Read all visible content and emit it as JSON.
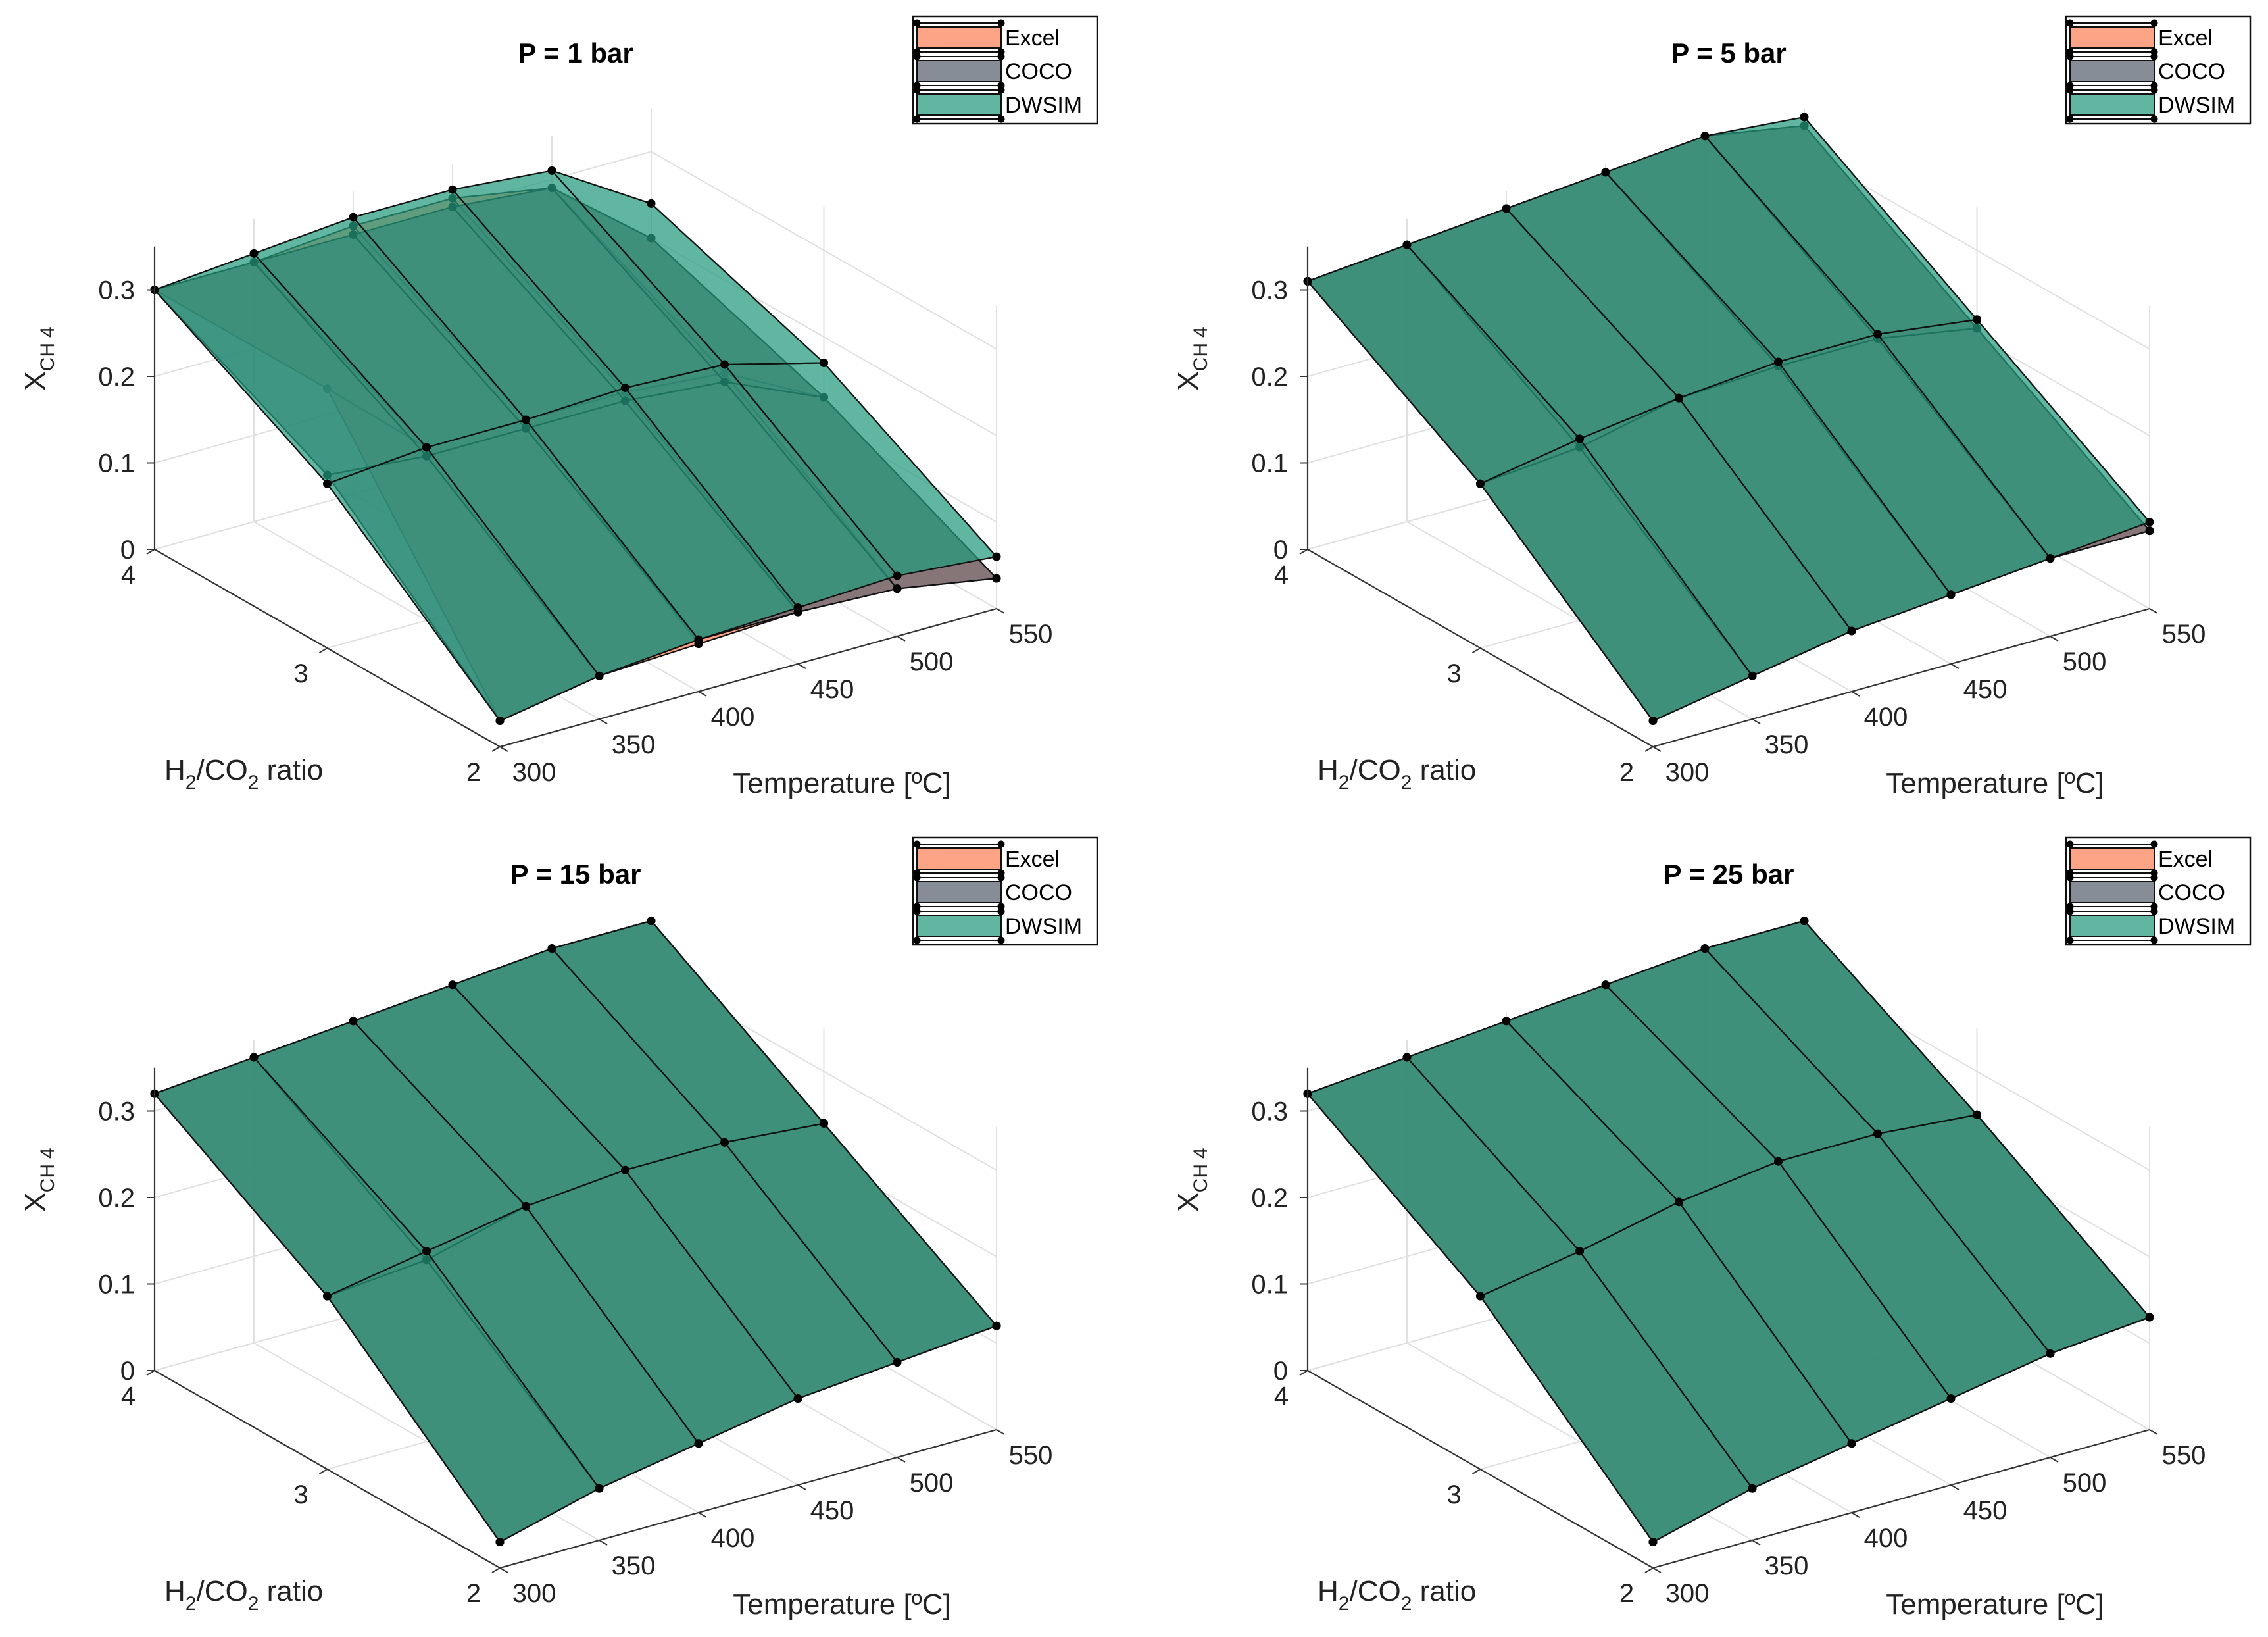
{
  "colors": {
    "excel": "#fb9470",
    "coco": "#5f6773",
    "dwsim": "#239a7c",
    "grid": "#e0e0e0",
    "axis": "#333333",
    "background": "#ffffff"
  },
  "chart_data": [
    {
      "type": "surface",
      "title": "P = 1 bar",
      "xlabel": "Temperature [ºC]",
      "ylabel_parts": [
        "H",
        "2",
        "/CO",
        "2",
        " ratio"
      ],
      "zlabel_parts": [
        "X",
        "CH",
        "4"
      ],
      "x_ticks": [
        "300",
        "350",
        "400",
        "450",
        "500",
        "550"
      ],
      "y_ticks": [
        "2",
        "3",
        "4"
      ],
      "z_ticks": [
        "0",
        "0.1",
        "0.2",
        "0.3"
      ],
      "legend": [
        "Excel",
        "COCO",
        "DWSIM"
      ],
      "temperature": [
        300,
        350,
        400,
        450,
        500,
        550
      ],
      "h2_co2_ratio": [
        2,
        3,
        4
      ],
      "xlim": [
        300,
        550
      ],
      "ylim": [
        2,
        4
      ],
      "zlim": [
        0,
        0.35
      ],
      "series": [
        {
          "name": "Excel",
          "values": [
            [
              0.03,
              0.05,
              0.055,
              0.06,
              0.055,
              0.035
            ],
            [
              0.3,
              0.2,
              0.2,
              0.2,
              0.19,
              0.13
            ],
            [
              0.3,
              0.3,
              0.31,
              0.31,
              0.29,
              0.2
            ]
          ]
        },
        {
          "name": "COCO",
          "values": [
            [
              0.03,
              0.05,
              0.06,
              0.06,
              0.055,
              0.035
            ],
            [
              0.2,
              0.19,
              0.19,
              0.19,
              0.18,
              0.13
            ],
            [
              0.3,
              0.3,
              0.3,
              0.3,
              0.29,
              0.2
            ]
          ]
        },
        {
          "name": "DWSIM",
          "values": [
            [
              0.03,
              0.05,
              0.06,
              0.065,
              0.07,
              0.06
            ],
            [
              0.19,
              0.2,
              0.2,
              0.205,
              0.2,
              0.17
            ],
            [
              0.3,
              0.31,
              0.32,
              0.32,
              0.31,
              0.24
            ]
          ]
        }
      ]
    },
    {
      "type": "surface",
      "title": "P = 5 bar",
      "xlabel": "Temperature [ºC]",
      "ylabel_parts": [
        "H",
        "2",
        "/CO",
        "2",
        " ratio"
      ],
      "zlabel_parts": [
        "X",
        "CH",
        "4"
      ],
      "x_ticks": [
        "300",
        "350",
        "400",
        "450",
        "500",
        "550"
      ],
      "y_ticks": [
        "2",
        "3",
        "4"
      ],
      "z_ticks": [
        "0",
        "0.1",
        "0.2",
        "0.3"
      ],
      "legend": [
        "Excel",
        "COCO",
        "DWSIM"
      ],
      "temperature": [
        300,
        350,
        400,
        450,
        500,
        550
      ],
      "h2_co2_ratio": [
        2,
        3,
        4
      ],
      "xlim": [
        300,
        550
      ],
      "ylim": [
        2,
        4
      ],
      "zlim": [
        0,
        0.35
      ],
      "series": [
        {
          "name": "Excel",
          "values": [
            [
              0.03,
              0.05,
              0.07,
              0.08,
              0.09,
              0.09
            ],
            [
              0.19,
              0.2,
              0.225,
              0.23,
              0.23,
              0.21
            ],
            [
              0.31,
              0.32,
              0.33,
              0.34,
              0.35,
              0.33
            ]
          ]
        },
        {
          "name": "COCO",
          "values": [
            [
              0.03,
              0.05,
              0.07,
              0.08,
              0.09,
              0.09
            ],
            [
              0.19,
              0.2,
              0.225,
              0.23,
              0.23,
              0.21
            ],
            [
              0.31,
              0.32,
              0.33,
              0.34,
              0.35,
              0.33
            ]
          ]
        },
        {
          "name": "DWSIM",
          "values": [
            [
              0.03,
              0.05,
              0.07,
              0.08,
              0.09,
              0.1
            ],
            [
              0.19,
              0.21,
              0.225,
              0.235,
              0.235,
              0.22
            ],
            [
              0.31,
              0.32,
              0.33,
              0.34,
              0.35,
              0.34
            ]
          ]
        }
      ]
    },
    {
      "type": "surface",
      "title": "P = 15 bar",
      "xlabel": "Temperature [ºC]",
      "ylabel_parts": [
        "H",
        "2",
        "/CO",
        "2",
        " ratio"
      ],
      "zlabel_parts": [
        "X",
        "CH",
        "4"
      ],
      "x_ticks": [
        "300",
        "350",
        "400",
        "450",
        "500",
        "550"
      ],
      "y_ticks": [
        "2",
        "3",
        "4"
      ],
      "z_ticks": [
        "0",
        "0.1",
        "0.2",
        "0.3"
      ],
      "legend": [
        "Excel",
        "COCO",
        "DWSIM"
      ],
      "temperature": [
        300,
        350,
        400,
        450,
        500,
        550
      ],
      "h2_co2_ratio": [
        2,
        3,
        4
      ],
      "xlim": [
        300,
        550
      ],
      "ylim": [
        2,
        4
      ],
      "zlim": [
        0,
        0.35
      ],
      "series": [
        {
          "name": "Excel",
          "values": [
            [
              0.03,
              0.06,
              0.08,
              0.1,
              0.11,
              0.12
            ],
            [
              0.2,
              0.21,
              0.24,
              0.25,
              0.25,
              0.24
            ],
            [
              0.32,
              0.33,
              0.34,
              0.35,
              0.36,
              0.36
            ]
          ]
        },
        {
          "name": "COCO",
          "values": [
            [
              0.03,
              0.06,
              0.08,
              0.1,
              0.11,
              0.12
            ],
            [
              0.2,
              0.21,
              0.24,
              0.25,
              0.25,
              0.24
            ],
            [
              0.32,
              0.33,
              0.34,
              0.35,
              0.36,
              0.36
            ]
          ]
        },
        {
          "name": "DWSIM",
          "values": [
            [
              0.03,
              0.06,
              0.08,
              0.1,
              0.11,
              0.12
            ],
            [
              0.2,
              0.22,
              0.24,
              0.25,
              0.25,
              0.24
            ],
            [
              0.32,
              0.33,
              0.34,
              0.35,
              0.36,
              0.36
            ]
          ]
        }
      ]
    },
    {
      "type": "surface",
      "title": "P = 25 bar",
      "xlabel": "Temperature [ºC]",
      "ylabel_parts": [
        "H",
        "2",
        "/CO",
        "2",
        " ratio"
      ],
      "zlabel_parts": [
        "X",
        "CH",
        "4"
      ],
      "x_ticks": [
        "300",
        "350",
        "400",
        "450",
        "500",
        "550"
      ],
      "y_ticks": [
        "2",
        "3",
        "4"
      ],
      "z_ticks": [
        "0",
        "0.1",
        "0.2",
        "0.3"
      ],
      "legend": [
        "Excel",
        "COCO",
        "DWSIM"
      ],
      "temperature": [
        300,
        350,
        400,
        450,
        500,
        550
      ],
      "h2_co2_ratio": [
        2,
        3,
        4
      ],
      "xlim": [
        300,
        550
      ],
      "ylim": [
        2,
        4
      ],
      "zlim": [
        0,
        0.35
      ],
      "series": [
        {
          "name": "Excel",
          "values": [
            [
              0.03,
              0.06,
              0.08,
              0.1,
              0.12,
              0.13
            ],
            [
              0.2,
              0.22,
              0.245,
              0.26,
              0.26,
              0.25
            ],
            [
              0.32,
              0.33,
              0.34,
              0.35,
              0.36,
              0.36
            ]
          ]
        },
        {
          "name": "COCO",
          "values": [
            [
              0.03,
              0.06,
              0.08,
              0.1,
              0.12,
              0.13
            ],
            [
              0.2,
              0.22,
              0.245,
              0.26,
              0.26,
              0.25
            ],
            [
              0.32,
              0.33,
              0.34,
              0.35,
              0.36,
              0.36
            ]
          ]
        },
        {
          "name": "DWSIM",
          "values": [
            [
              0.03,
              0.06,
              0.08,
              0.1,
              0.12,
              0.13
            ],
            [
              0.2,
              0.22,
              0.245,
              0.26,
              0.26,
              0.25
            ],
            [
              0.32,
              0.33,
              0.34,
              0.35,
              0.36,
              0.36
            ]
          ]
        }
      ]
    }
  ]
}
